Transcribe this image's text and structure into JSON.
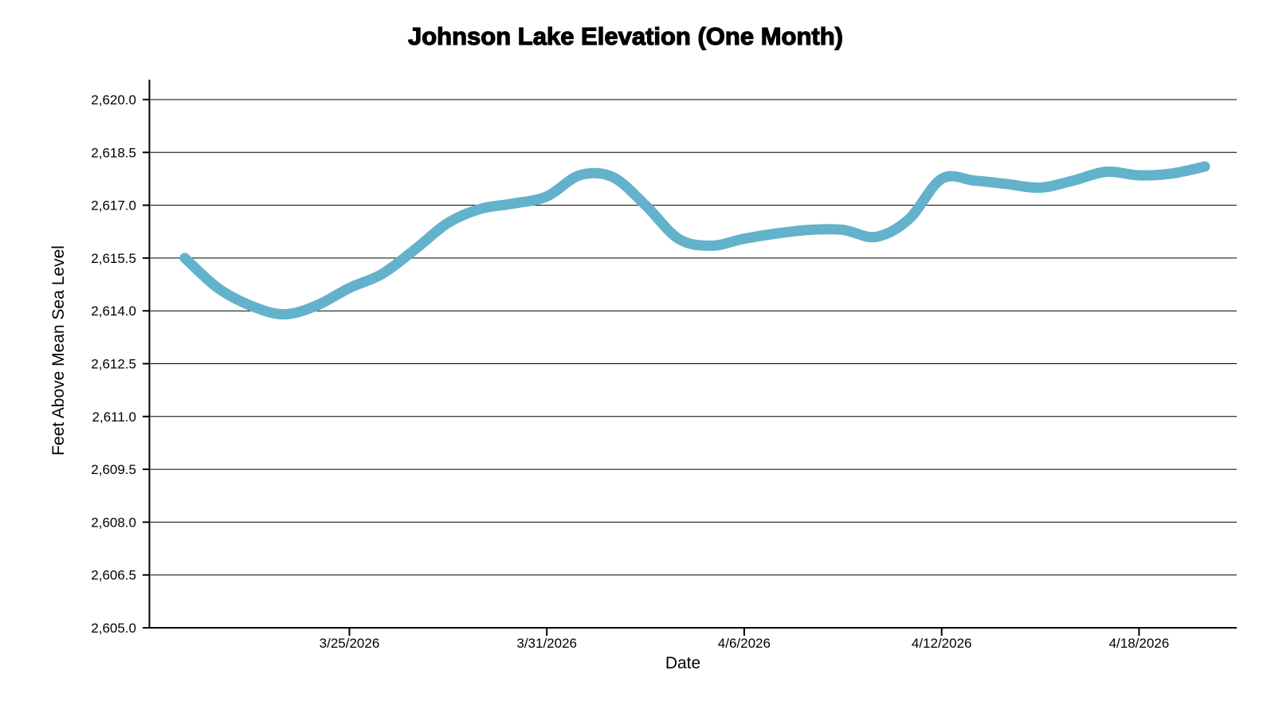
{
  "chart_data": {
    "type": "line",
    "title": "Johnson Lake Elevation (One Month)",
    "xlabel": "Date",
    "ylabel": "Feet Above Mean Sea Level",
    "legend_position": "none",
    "grid": true,
    "smoothing": "spline",
    "line_color": "#63B2CB",
    "line_width": 13,
    "axis_color": "#000000",
    "gridline_color": "#000000",
    "text_color": "#000000",
    "background_color": "#ffffff",
    "ylim": [
      2605,
      2620
    ],
    "y_tick_step": 1.5,
    "y_ticks": [
      {
        "value": 2605.0,
        "label": "2,605.0"
      },
      {
        "value": 2606.5,
        "label": "2,606.5"
      },
      {
        "value": 2608.0,
        "label": "2,608.0"
      },
      {
        "value": 2609.5,
        "label": "2,609.5"
      },
      {
        "value": 2611.0,
        "label": "2,611.0"
      },
      {
        "value": 2612.5,
        "label": "2,612.5"
      },
      {
        "value": 2614.0,
        "label": "2,614.0"
      },
      {
        "value": 2615.5,
        "label": "2,615.5"
      },
      {
        "value": 2617.0,
        "label": "2,617.0"
      },
      {
        "value": 2618.5,
        "label": "2,618.5"
      },
      {
        "value": 2620.0,
        "label": "2,620.0"
      }
    ],
    "x": [
      "3/20/2026",
      "3/21/2026",
      "3/22/2026",
      "3/23/2026",
      "3/24/2026",
      "3/25/2026",
      "3/26/2026",
      "3/27/2026",
      "3/28/2026",
      "3/29/2026",
      "3/30/2026",
      "3/31/2026",
      "4/1/2026",
      "4/2/2026",
      "4/3/2026",
      "4/4/2026",
      "4/5/2026",
      "4/6/2026",
      "4/7/2026",
      "4/8/2026",
      "4/9/2026",
      "4/10/2026",
      "4/11/2026",
      "4/12/2026",
      "4/13/2026",
      "4/14/2026",
      "4/15/2026",
      "4/16/2026",
      "4/17/2026",
      "4/18/2026",
      "4/19/2026",
      "4/20/2026"
    ],
    "x_tick_labels": [
      "3/25/2026",
      "3/31/2026",
      "4/6/2026",
      "4/12/2026",
      "4/18/2026"
    ],
    "series": [
      {
        "name": "Lake Elevation",
        "values": [
          2615.5,
          2614.65,
          2614.15,
          2613.9,
          2614.15,
          2614.65,
          2615.05,
          2615.75,
          2616.5,
          2616.9,
          2617.05,
          2617.25,
          2617.85,
          2617.8,
          2617.0,
          2616.05,
          2615.85,
          2616.05,
          2616.2,
          2616.3,
          2616.3,
          2616.1,
          2616.6,
          2617.75,
          2617.7,
          2617.6,
          2617.5,
          2617.7,
          2617.95,
          2617.85,
          2617.9,
          2618.1
        ]
      }
    ]
  }
}
